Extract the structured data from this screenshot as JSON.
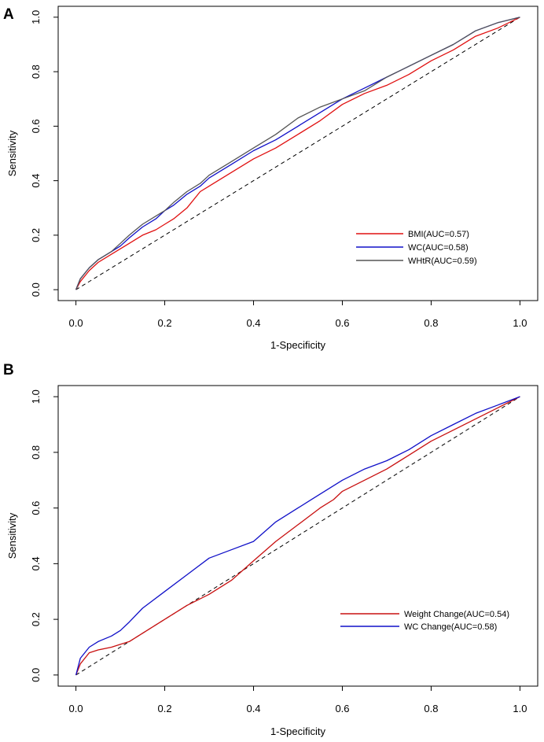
{
  "chart_data": [
    {
      "panel": "A",
      "type": "line",
      "xlabel": "1-Specificity",
      "ylabel": "Sensitivity",
      "xlim": [
        -0.04,
        1.04
      ],
      "ylim": [
        -0.04,
        1.04
      ],
      "xticks": [
        "0.0",
        "0.2",
        "0.4",
        "0.6",
        "0.8",
        "1.0"
      ],
      "yticks": [
        "0.0",
        "0.2",
        "0.4",
        "0.6",
        "0.8",
        "1.0"
      ],
      "legend_position": "bottom-right",
      "reference_line": {
        "x": [
          0,
          1
        ],
        "y": [
          0,
          1
        ],
        "style": "dashed",
        "color": "#000000"
      },
      "series": [
        {
          "name": "BMI(AUC=0.57)",
          "color": "#e01010",
          "x": [
            0,
            0.01,
            0.03,
            0.05,
            0.08,
            0.1,
            0.12,
            0.15,
            0.18,
            0.2,
            0.22,
            0.25,
            0.28,
            0.3,
            0.35,
            0.4,
            0.45,
            0.5,
            0.55,
            0.6,
            0.65,
            0.7,
            0.75,
            0.8,
            0.85,
            0.9,
            0.95,
            1
          ],
          "y": [
            0,
            0.03,
            0.07,
            0.1,
            0.13,
            0.15,
            0.17,
            0.2,
            0.22,
            0.24,
            0.26,
            0.3,
            0.36,
            0.38,
            0.43,
            0.48,
            0.52,
            0.57,
            0.62,
            0.68,
            0.72,
            0.75,
            0.79,
            0.84,
            0.88,
            0.93,
            0.96,
            1
          ]
        },
        {
          "name": "WC(AUC=0.58)",
          "color": "#1010c8",
          "x": [
            0,
            0.01,
            0.03,
            0.05,
            0.08,
            0.1,
            0.12,
            0.15,
            0.18,
            0.2,
            0.22,
            0.25,
            0.28,
            0.3,
            0.35,
            0.4,
            0.45,
            0.5,
            0.55,
            0.6,
            0.65,
            0.7,
            0.75,
            0.8,
            0.85,
            0.9,
            0.95,
            1
          ],
          "y": [
            0,
            0.04,
            0.08,
            0.11,
            0.14,
            0.16,
            0.19,
            0.23,
            0.26,
            0.29,
            0.31,
            0.35,
            0.38,
            0.41,
            0.46,
            0.51,
            0.55,
            0.6,
            0.65,
            0.7,
            0.74,
            0.78,
            0.82,
            0.86,
            0.9,
            0.95,
            0.98,
            1
          ]
        },
        {
          "name": "WHtR(AUC=0.59)",
          "color": "#555555",
          "x": [
            0,
            0.01,
            0.03,
            0.05,
            0.08,
            0.1,
            0.12,
            0.15,
            0.18,
            0.2,
            0.22,
            0.25,
            0.28,
            0.3,
            0.35,
            0.4,
            0.45,
            0.5,
            0.55,
            0.6,
            0.65,
            0.7,
            0.75,
            0.8,
            0.85,
            0.9,
            0.95,
            1
          ],
          "y": [
            0,
            0.04,
            0.08,
            0.11,
            0.14,
            0.17,
            0.2,
            0.24,
            0.27,
            0.29,
            0.32,
            0.36,
            0.39,
            0.42,
            0.47,
            0.52,
            0.57,
            0.63,
            0.67,
            0.7,
            0.73,
            0.78,
            0.82,
            0.86,
            0.9,
            0.95,
            0.98,
            1
          ]
        }
      ]
    },
    {
      "panel": "B",
      "type": "line",
      "xlabel": "1-Specificity",
      "ylabel": "Sensitivity",
      "xlim": [
        -0.04,
        1.04
      ],
      "ylim": [
        -0.04,
        1.04
      ],
      "xticks": [
        "0.0",
        "0.2",
        "0.4",
        "0.6",
        "0.8",
        "1.0"
      ],
      "yticks": [
        "0.0",
        "0.2",
        "0.4",
        "0.6",
        "0.8",
        "1.0"
      ],
      "legend_position": "bottom-right",
      "reference_line": {
        "x": [
          0,
          1
        ],
        "y": [
          0,
          1
        ],
        "style": "dashed",
        "color": "#000000"
      },
      "series": [
        {
          "name": "Weight Change(AUC=0.54)",
          "color": "#c81010",
          "x": [
            0,
            0.01,
            0.03,
            0.05,
            0.08,
            0.1,
            0.12,
            0.15,
            0.2,
            0.25,
            0.3,
            0.35,
            0.4,
            0.45,
            0.5,
            0.55,
            0.58,
            0.6,
            0.65,
            0.7,
            0.75,
            0.8,
            0.85,
            0.9,
            0.95,
            1
          ],
          "y": [
            0,
            0.04,
            0.08,
            0.09,
            0.1,
            0.11,
            0.12,
            0.15,
            0.2,
            0.25,
            0.29,
            0.34,
            0.41,
            0.48,
            0.54,
            0.6,
            0.63,
            0.66,
            0.7,
            0.74,
            0.79,
            0.84,
            0.88,
            0.92,
            0.96,
            1
          ]
        },
        {
          "name": "WC Change(AUC=0.58)",
          "color": "#1010c8",
          "x": [
            0,
            0.01,
            0.03,
            0.05,
            0.08,
            0.1,
            0.12,
            0.15,
            0.2,
            0.25,
            0.3,
            0.35,
            0.4,
            0.45,
            0.5,
            0.55,
            0.6,
            0.65,
            0.7,
            0.75,
            0.8,
            0.85,
            0.9,
            0.95,
            1
          ],
          "y": [
            0,
            0.06,
            0.1,
            0.12,
            0.14,
            0.16,
            0.19,
            0.24,
            0.3,
            0.36,
            0.42,
            0.45,
            0.48,
            0.55,
            0.6,
            0.65,
            0.7,
            0.74,
            0.77,
            0.81,
            0.86,
            0.9,
            0.94,
            0.97,
            1
          ]
        }
      ]
    }
  ],
  "panels": [
    {
      "label": "A"
    },
    {
      "label": "B"
    }
  ]
}
